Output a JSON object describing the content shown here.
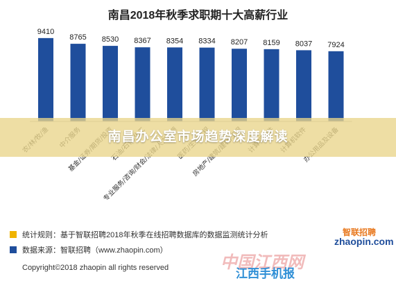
{
  "chart_data": {
    "type": "bar",
    "title": "南昌2018年秋季求职期十大高薪行业",
    "categories": [
      "农/林/牧/渔",
      "中介服务",
      "基金/证券/期货/投资",
      "石油/石化/化工",
      "专业服务/咨询/财会/法律/人力资源",
      "医药/生物工程",
      "房地产/建筑/建材/工程",
      "计算机硬件",
      "计算机软件",
      "办公用品及设备"
    ],
    "values": [
      9410,
      8765,
      8530,
      8367,
      8354,
      8334,
      8207,
      8159,
      8037,
      7924
    ],
    "ylim": [
      0,
      10000
    ],
    "grid": false,
    "legend": false,
    "bar_color": "#1f4e9c"
  },
  "banner": {
    "text": "南昌办公室市场趋势深度解读"
  },
  "footer": {
    "rule_label": "统计规则：基于智联招聘2018年秋季在线招聘数据库的数据监测统计分析",
    "source_label": "数据来源：智联招聘（www.zhaopin.com）",
    "copyright": "Copyright©2018 zhaopin all rights reserved",
    "rule_color": "#f0b400",
    "source_color": "#1f4e9c",
    "brand_top": "智联招聘",
    "brand_bottom": "zhaopin.com"
  },
  "watermark": {
    "cn": "中国江西网",
    "site": "江西手机报"
  }
}
